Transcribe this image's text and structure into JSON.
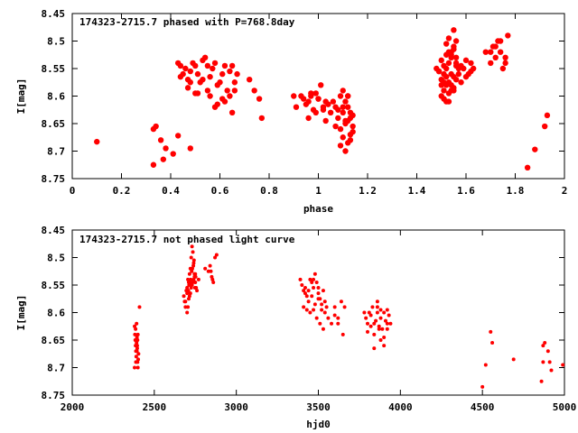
{
  "chart_data": [
    {
      "type": "scatter",
      "title": "174323-2715.7 phased with P=768.8day",
      "xlabel": "phase",
      "ylabel": "I[mag]",
      "xlim": [
        0,
        2
      ],
      "ylim": [
        8.45,
        8.75
      ],
      "y_inverted": true,
      "x_ticks": [
        "0",
        "0.2",
        "0.4",
        "0.6",
        "0.8",
        "1",
        "1.2",
        "1.4",
        "1.6",
        "1.8",
        "2"
      ],
      "y_ticks": [
        "8.45",
        "8.5",
        "8.55",
        "8.6",
        "8.65",
        "8.7",
        "8.75"
      ],
      "marker": "filled-circle-large",
      "color": "#ff0000",
      "series": [
        {
          "x": [
            0.1,
            0.33,
            0.34,
            0.33,
            0.36,
            0.37,
            0.38,
            0.41,
            0.43,
            0.48,
            0.43,
            0.44,
            0.45,
            0.46,
            0.47,
            0.48,
            0.49,
            0.5,
            0.51,
            0.52,
            0.53,
            0.54,
            0.55,
            0.56,
            0.57,
            0.58,
            0.59,
            0.6,
            0.61,
            0.62,
            0.63,
            0.64,
            0.65,
            0.66,
            0.67,
            0.44,
            0.47,
            0.5,
            0.53,
            0.56,
            0.59,
            0.62,
            0.65,
            0.48,
            0.51,
            0.55,
            0.58,
            0.61,
            0.64,
            0.66,
            0.72,
            0.74,
            0.76,
            0.77,
            0.9,
            0.91,
            0.93,
            0.94,
            0.95,
            0.96,
            0.97,
            0.98,
            0.99,
            1.0,
            1.01,
            1.02,
            1.03,
            1.04,
            0.96,
            0.99,
            1.02,
            1.05,
            0.97,
            1.0,
            1.03,
            1.06,
            1.07,
            1.08,
            1.09,
            1.1,
            1.11,
            1.12,
            1.13,
            1.14,
            1.07,
            1.09,
            1.11,
            1.13,
            1.08,
            1.1,
            1.12,
            1.14,
            1.09,
            1.11,
            1.13,
            1.1,
            1.12,
            1.11,
            1.13,
            1.12,
            1.14,
            1.1,
            1.12,
            1.48,
            1.49,
            1.5,
            1.51,
            1.52,
            1.53,
            1.54,
            1.55,
            1.56,
            1.57,
            1.5,
            1.51,
            1.52,
            1.53,
            1.54,
            1.55,
            1.56,
            1.49,
            1.51,
            1.53,
            1.55,
            1.57,
            1.5,
            1.52,
            1.54,
            1.56,
            1.51,
            1.53,
            1.55,
            1.52,
            1.54,
            1.56,
            1.5,
            1.52,
            1.54,
            1.53,
            1.55,
            1.51,
            1.53,
            1.55,
            1.54,
            1.56,
            1.52,
            1.58,
            1.59,
            1.6,
            1.61,
            1.62,
            1.63,
            1.58,
            1.6,
            1.62,
            1.68,
            1.7,
            1.71,
            1.72,
            1.73,
            1.74,
            1.75,
            1.76,
            1.77,
            1.7,
            1.72,
            1.74,
            1.76,
            1.85,
            1.88,
            1.92,
            1.93
          ],
          "y": [
            8.683,
            8.725,
            8.655,
            8.66,
            8.68,
            8.715,
            8.695,
            8.705,
            8.672,
            8.695,
            8.54,
            8.545,
            8.56,
            8.55,
            8.57,
            8.555,
            8.54,
            8.545,
            8.56,
            8.575,
            8.535,
            8.53,
            8.545,
            8.565,
            8.55,
            8.54,
            8.58,
            8.575,
            8.56,
            8.545,
            8.59,
            8.555,
            8.545,
            8.575,
            8.56,
            8.565,
            8.585,
            8.595,
            8.57,
            8.6,
            8.615,
            8.61,
            8.63,
            8.575,
            8.595,
            8.59,
            8.62,
            8.605,
            8.6,
            8.59,
            8.57,
            8.59,
            8.605,
            8.64,
            8.6,
            8.62,
            8.6,
            8.605,
            8.615,
            8.61,
            8.6,
            8.625,
            8.595,
            8.605,
            8.58,
            8.625,
            8.645,
            8.615,
            8.64,
            8.63,
            8.62,
            8.63,
            8.595,
            8.605,
            8.61,
            8.61,
            8.62,
            8.625,
            8.6,
            8.63,
            8.645,
            8.62,
            8.64,
            8.635,
            8.655,
            8.66,
            8.65,
            8.67,
            8.64,
            8.675,
            8.685,
            8.665,
            8.69,
            8.7,
            8.68,
            8.62,
            8.6,
            8.61,
            8.63,
            8.645,
            8.655,
            8.59,
            8.6,
            8.55,
            8.555,
            8.57,
            8.56,
            8.58,
            8.575,
            8.59,
            8.565,
            8.545,
            8.56,
            8.535,
            8.545,
            8.525,
            8.54,
            8.53,
            8.515,
            8.5,
            8.555,
            8.575,
            8.595,
            8.585,
            8.55,
            8.6,
            8.61,
            8.58,
            8.57,
            8.59,
            8.52,
            8.51,
            8.505,
            8.52,
            8.54,
            8.58,
            8.55,
            8.56,
            8.495,
            8.48,
            8.605,
            8.61,
            8.59,
            8.525,
            8.53,
            8.565,
            8.545,
            8.55,
            8.535,
            8.56,
            8.54,
            8.55,
            8.575,
            8.565,
            8.555,
            8.52,
            8.54,
            8.51,
            8.53,
            8.5,
            8.52,
            8.55,
            8.54,
            8.49,
            8.52,
            8.51,
            8.5,
            8.53,
            8.73,
            8.697,
            8.655,
            8.635
          ]
        }
      ]
    },
    {
      "type": "scatter",
      "title": "174323-2715.7 not phased light curve",
      "xlabel": "hjd0",
      "ylabel": "I[mag]",
      "xlim": [
        2000,
        5000
      ],
      "ylim": [
        8.45,
        8.75
      ],
      "y_inverted": true,
      "x_ticks": [
        "2000",
        "2500",
        "3000",
        "3500",
        "4000",
        "4500",
        "5000"
      ],
      "y_ticks": [
        "8.45",
        "8.5",
        "8.55",
        "8.6",
        "8.65",
        "8.7",
        "8.75"
      ],
      "marker": "filled-circle-small",
      "color": "#ff0000",
      "series": [
        {
          "x": [
            2380,
            2382,
            2384,
            2386,
            2388,
            2390,
            2392,
            2394,
            2396,
            2398,
            2400,
            2402,
            2404,
            2386,
            2392,
            2398,
            2380,
            2394,
            2400,
            2388,
            2396,
            2410,
            2680,
            2685,
            2690,
            2695,
            2700,
            2705,
            2710,
            2715,
            2720,
            2725,
            2730,
            2735,
            2740,
            2745,
            2750,
            2755,
            2700,
            2710,
            2720,
            2730,
            2740,
            2750,
            2705,
            2715,
            2725,
            2735,
            2745,
            2690,
            2700,
            2712,
            2722,
            2732,
            2742,
            2752,
            2708,
            2718,
            2728,
            2738,
            2748,
            2760,
            2770,
            2810,
            2830,
            2850,
            2860,
            2870,
            2880,
            2840,
            2855,
            2845,
            3390,
            3400,
            3410,
            3420,
            3430,
            3440,
            3450,
            3460,
            3470,
            3480,
            3490,
            3500,
            3510,
            3520,
            3530,
            3540,
            3550,
            3410,
            3430,
            3450,
            3470,
            3490,
            3510,
            3530,
            3420,
            3440,
            3460,
            3480,
            3500,
            3520,
            3540,
            3560,
            3580,
            3600,
            3620,
            3640,
            3660,
            3600,
            3620,
            3650,
            3470,
            3500,
            3780,
            3790,
            3800,
            3810,
            3820,
            3830,
            3840,
            3850,
            3860,
            3870,
            3880,
            3890,
            3900,
            3910,
            3920,
            3930,
            3940,
            3800,
            3820,
            3840,
            3860,
            3880,
            3900,
            3920,
            3860,
            3880,
            3900,
            3920,
            3840,
            3870,
            4500,
            4520,
            4550,
            4560,
            4690,
            4860,
            4870,
            4880,
            4900,
            4910,
            4920,
            4870,
            4990
          ],
          "y": [
            8.625,
            8.64,
            8.65,
            8.66,
            8.67,
            8.68,
            8.655,
            8.645,
            8.66,
            8.69,
            8.7,
            8.685,
            8.675,
            8.63,
            8.62,
            8.65,
            8.7,
            8.67,
            8.64,
            8.69,
            8.665,
            8.59,
            8.57,
            8.58,
            8.59,
            8.56,
            8.555,
            8.54,
            8.545,
            8.53,
            8.52,
            8.5,
            8.48,
            8.49,
            8.51,
            8.53,
            8.545,
            8.555,
            8.6,
            8.575,
            8.565,
            8.55,
            8.54,
            8.53,
            8.59,
            8.57,
            8.555,
            8.545,
            8.535,
            8.58,
            8.565,
            8.55,
            8.54,
            8.52,
            8.505,
            8.535,
            8.56,
            8.545,
            8.525,
            8.515,
            8.555,
            8.56,
            8.54,
            8.52,
            8.525,
            8.535,
            8.545,
            8.5,
            8.495,
            8.515,
            8.54,
            8.525,
            8.54,
            8.55,
            8.56,
            8.565,
            8.57,
            8.58,
            8.54,
            8.545,
            8.555,
            8.53,
            8.545,
            8.565,
            8.575,
            8.585,
            8.56,
            8.58,
            8.59,
            8.59,
            8.595,
            8.6,
            8.595,
            8.61,
            8.62,
            8.63,
            8.555,
            8.56,
            8.57,
            8.585,
            8.575,
            8.595,
            8.6,
            8.61,
            8.62,
            8.605,
            8.62,
            8.58,
            8.59,
            8.59,
            8.61,
            8.64,
            8.54,
            8.555,
            8.6,
            8.61,
            8.62,
            8.6,
            8.605,
            8.59,
            8.62,
            8.615,
            8.6,
            8.625,
            8.61,
            8.63,
            8.6,
            8.615,
            8.595,
            8.605,
            8.62,
            8.635,
            8.625,
            8.64,
            8.59,
            8.65,
            8.66,
            8.62,
            8.58,
            8.595,
            8.645,
            8.63,
            8.665,
            8.63,
            8.735,
            8.695,
            8.635,
            8.655,
            8.685,
            8.725,
            8.66,
            8.655,
            8.67,
            8.69,
            8.705,
            8.69,
            8.695
          ]
        }
      ]
    }
  ]
}
